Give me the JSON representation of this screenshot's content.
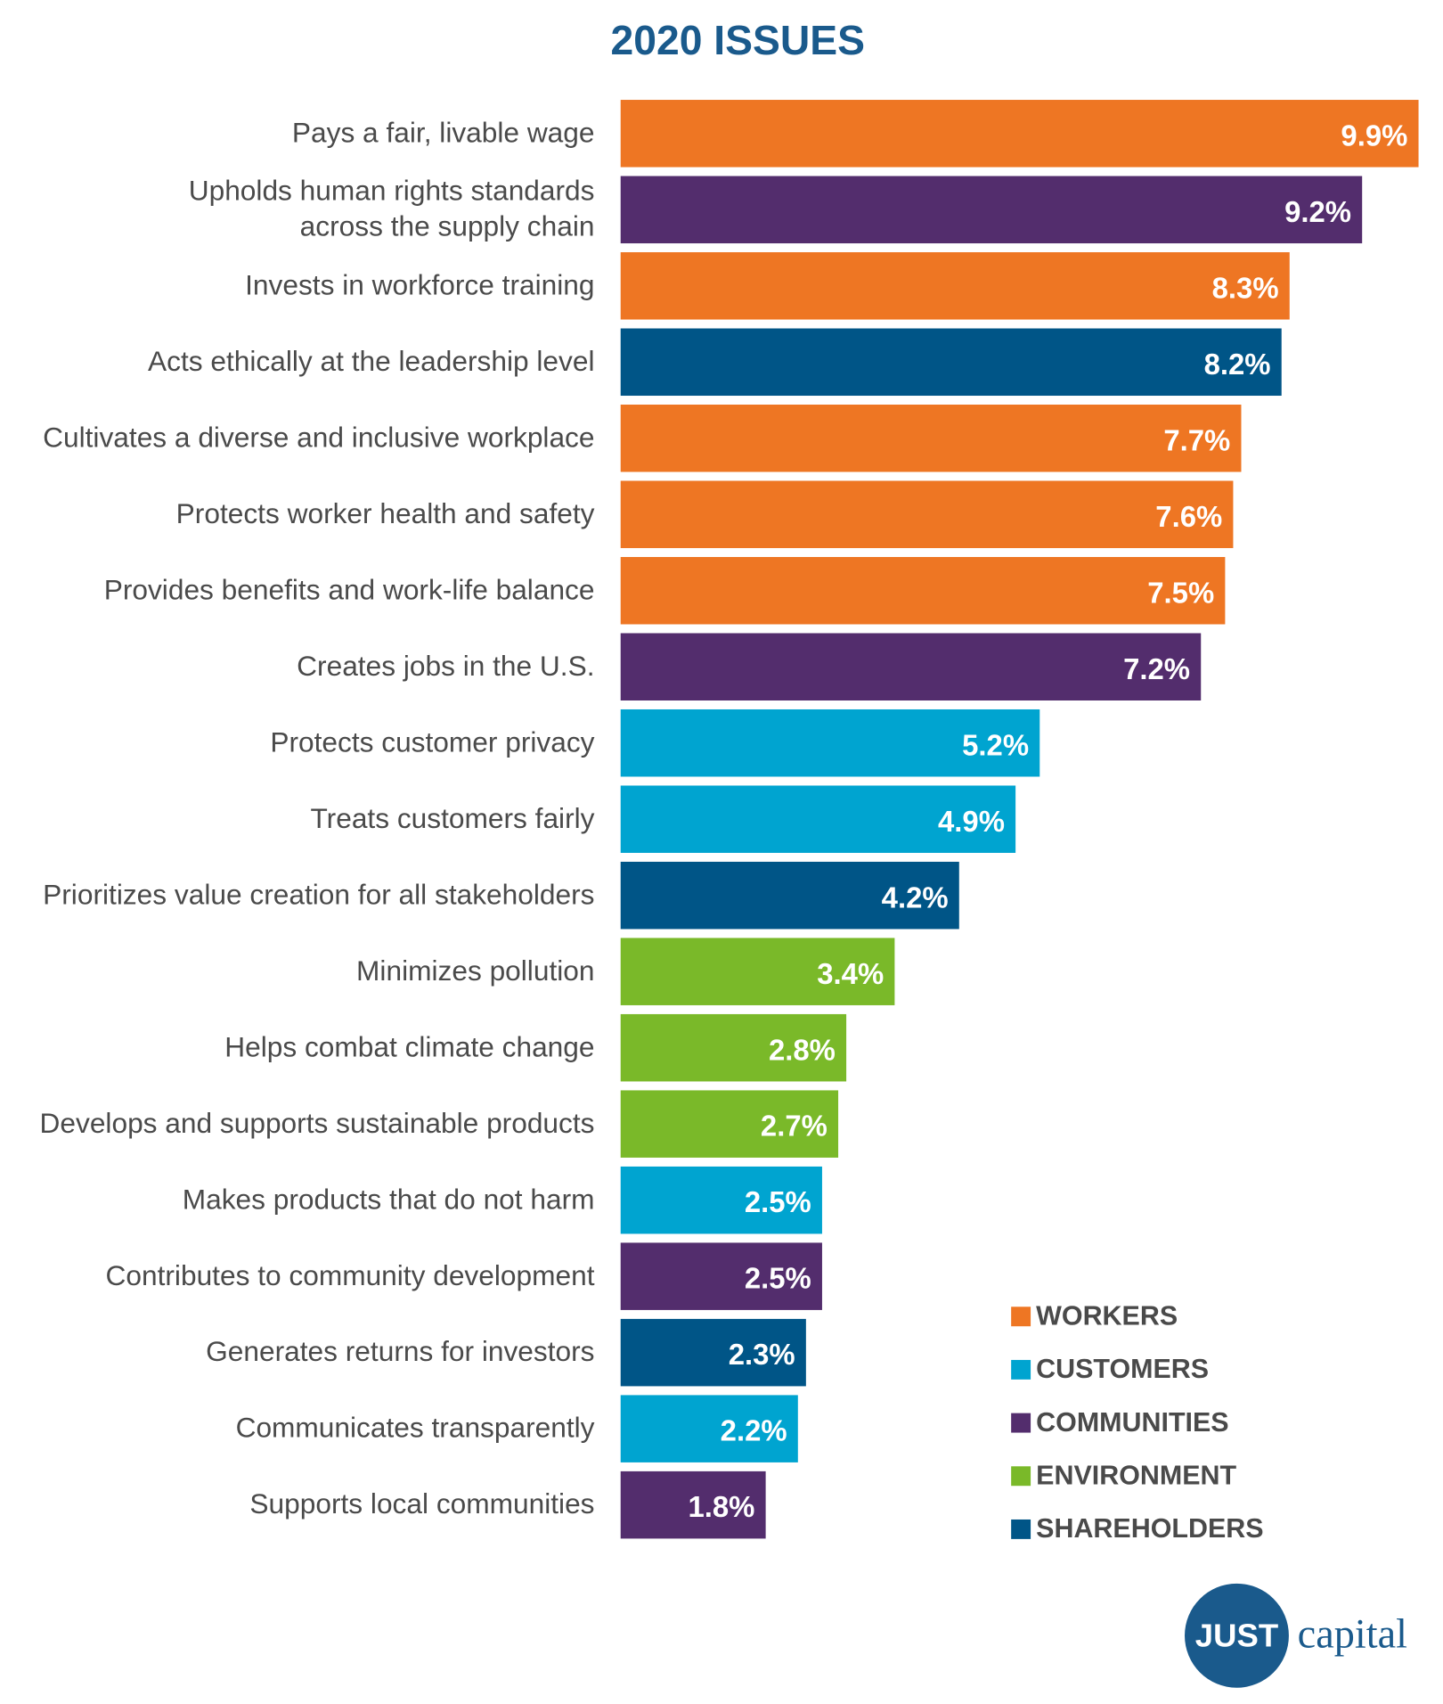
{
  "chart_data": {
    "type": "bar",
    "orientation": "horizontal",
    "title": "2020 ISSUES",
    "categories": [
      "Pays a fair, livable wage",
      "Upholds human rights standards\nacross the supply chain",
      "Invests in workforce training",
      "Acts ethically at the leadership level",
      "Cultivates a diverse and inclusive workplace",
      "Protects worker health and safety",
      "Provides benefits and work-life balance",
      "Creates jobs in the U.S.",
      "Protects customer privacy",
      "Treats customers fairly",
      "Prioritizes value creation for all stakeholders",
      "Minimizes pollution",
      "Helps combat climate change",
      "Develops and supports sustainable products",
      "Makes products that do not harm",
      "Contributes to community development",
      "Generates returns for investors",
      "Communicates transparently",
      "Supports local communities"
    ],
    "series": [
      {
        "name": "WORKERS",
        "color": "#ee7623",
        "values": [
          9.9,
          null,
          8.3,
          null,
          7.7,
          7.6,
          7.5,
          null,
          null,
          null,
          null,
          null,
          null,
          null,
          null,
          null,
          null,
          null,
          null
        ],
        "value_labels": [
          "9.9%",
          null,
          "8.3%",
          null,
          "7.7%",
          "7.6%",
          "7.5%",
          null,
          null,
          null,
          null,
          null,
          null,
          null,
          null,
          null,
          null,
          null,
          null
        ]
      },
      {
        "name": "CUSTOMERS",
        "color": "#00a4d0",
        "values": [
          null,
          null,
          null,
          null,
          null,
          null,
          null,
          null,
          5.2,
          4.9,
          null,
          null,
          null,
          null,
          2.5,
          null,
          null,
          2.2,
          null
        ],
        "value_labels": [
          null,
          null,
          null,
          null,
          null,
          null,
          null,
          null,
          "5.2%",
          "4.9%",
          null,
          null,
          null,
          null,
          "2.5%",
          null,
          null,
          "2.2%",
          null
        ]
      },
      {
        "name": "COMMUNITIES",
        "color": "#532d6d",
        "values": [
          null,
          9.2,
          null,
          null,
          null,
          null,
          null,
          7.2,
          null,
          null,
          null,
          null,
          null,
          null,
          null,
          2.5,
          null,
          null,
          1.8
        ],
        "value_labels": [
          null,
          "9.2%",
          null,
          null,
          null,
          null,
          null,
          "7.2%",
          null,
          null,
          null,
          null,
          null,
          null,
          null,
          "2.5%",
          null,
          null,
          "1.8%"
        ]
      },
      {
        "name": "ENVIRONMENT",
        "color": "#7ab929",
        "values": [
          null,
          null,
          null,
          null,
          null,
          null,
          null,
          null,
          null,
          null,
          null,
          3.4,
          2.8,
          2.7,
          null,
          null,
          null,
          null,
          null
        ],
        "value_labels": [
          null,
          null,
          null,
          null,
          null,
          null,
          null,
          null,
          null,
          null,
          null,
          "3.4%",
          "2.8%",
          "2.7%",
          null,
          null,
          null,
          null,
          null
        ]
      },
      {
        "name": "SHAREHOLDERS",
        "color": "#005587",
        "values": [
          null,
          null,
          null,
          8.2,
          null,
          null,
          null,
          null,
          null,
          null,
          4.2,
          null,
          null,
          null,
          null,
          null,
          2.3,
          null,
          null
        ],
        "value_labels": [
          null,
          null,
          null,
          "8.2%",
          null,
          null,
          null,
          null,
          null,
          null,
          "4.2%",
          null,
          null,
          null,
          null,
          null,
          "2.3%",
          null,
          null
        ]
      }
    ],
    "xlim": [
      0,
      10
    ],
    "legend": "lower-right"
  },
  "logo": {
    "mark": "JUST",
    "text": "capital"
  }
}
